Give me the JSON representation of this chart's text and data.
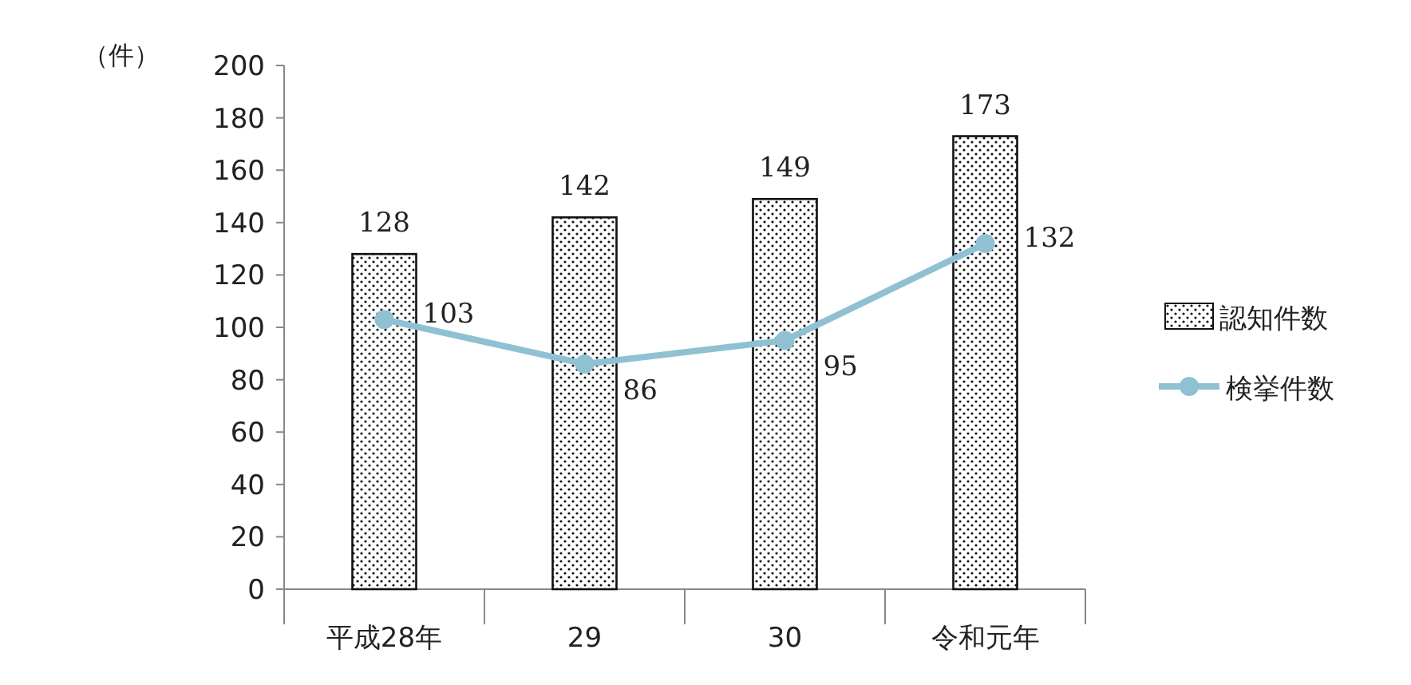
{
  "chart_data": {
    "type": "bar",
    "ylabel": "（件）",
    "categories": [
      "平成28年",
      "29",
      "30",
      "令和元年"
    ],
    "series": [
      {
        "name": "認知件数",
        "color": "#111111",
        "values": [
          128,
          142,
          149,
          173
        ]
      },
      {
        "name": "検挙件数",
        "type": "line",
        "color": "#8fc1d2",
        "values": [
          103,
          86,
          95,
          132
        ]
      }
    ],
    "ylim": [
      0,
      200
    ],
    "yticks": [
      0,
      20,
      40,
      60,
      80,
      100,
      120,
      140,
      160,
      180,
      200
    ],
    "data_labels": true,
    "legend": "right",
    "marker": "circle"
  }
}
